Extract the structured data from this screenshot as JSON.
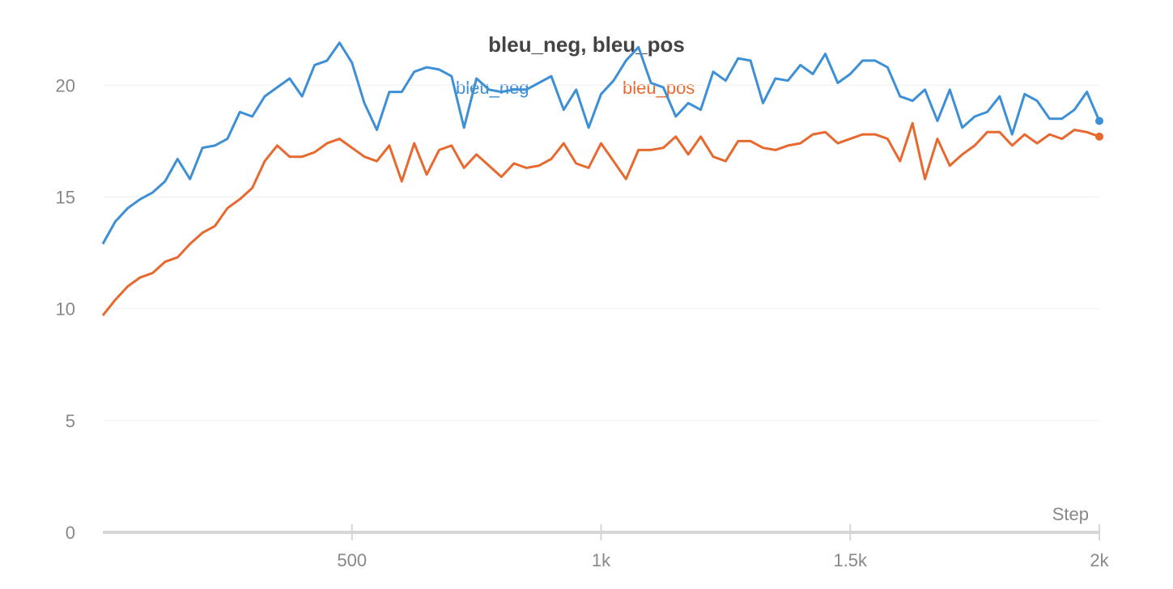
{
  "chart_data": {
    "type": "line",
    "title": "bleu_neg, bleu_pos",
    "xlabel": "Step",
    "ylabel": "",
    "xlim": [
      0,
      2000
    ],
    "ylim": [
      0,
      22
    ],
    "x_ticks": [
      {
        "value": 500,
        "label": "500"
      },
      {
        "value": 1000,
        "label": "1k"
      },
      {
        "value": 1500,
        "label": "1.5k"
      },
      {
        "value": 2000,
        "label": "2k"
      }
    ],
    "y_ticks": [
      {
        "value": 0,
        "label": "0"
      },
      {
        "value": 5,
        "label": "5"
      },
      {
        "value": 10,
        "label": "10"
      },
      {
        "value": 15,
        "label": "15"
      },
      {
        "value": 20,
        "label": "20"
      }
    ],
    "grid": "horizontal",
    "legend_position": "top-center",
    "series": [
      {
        "name": "bleu_neg",
        "color": "#3d8fd6",
        "points": [
          [
            0,
            12.9
          ],
          [
            25,
            13.9
          ],
          [
            50,
            14.5
          ],
          [
            75,
            14.9
          ],
          [
            100,
            15.2
          ],
          [
            125,
            15.7
          ],
          [
            150,
            16.7
          ],
          [
            175,
            15.8
          ],
          [
            200,
            17.2
          ],
          [
            225,
            17.3
          ],
          [
            250,
            17.6
          ],
          [
            275,
            18.8
          ],
          [
            300,
            18.6
          ],
          [
            325,
            19.5
          ],
          [
            350,
            19.9
          ],
          [
            375,
            20.3
          ],
          [
            400,
            19.5
          ],
          [
            425,
            20.9
          ],
          [
            450,
            21.1
          ],
          [
            475,
            21.9
          ],
          [
            500,
            21.0
          ],
          [
            525,
            19.2
          ],
          [
            550,
            18.0
          ],
          [
            575,
            19.7
          ],
          [
            600,
            19.7
          ],
          [
            625,
            20.6
          ],
          [
            650,
            20.8
          ],
          [
            675,
            20.7
          ],
          [
            700,
            20.4
          ],
          [
            725,
            18.1
          ],
          [
            750,
            20.3
          ],
          [
            775,
            19.8
          ],
          [
            800,
            19.7
          ],
          [
            825,
            19.8
          ],
          [
            850,
            19.8
          ],
          [
            875,
            20.1
          ],
          [
            900,
            20.4
          ],
          [
            925,
            18.9
          ],
          [
            950,
            19.8
          ],
          [
            975,
            18.1
          ],
          [
            1000,
            19.6
          ],
          [
            1025,
            20.2
          ],
          [
            1050,
            21.1
          ],
          [
            1075,
            21.7
          ],
          [
            1100,
            20.1
          ],
          [
            1125,
            19.9
          ],
          [
            1150,
            18.6
          ],
          [
            1175,
            19.2
          ],
          [
            1200,
            18.9
          ],
          [
            1225,
            20.6
          ],
          [
            1250,
            20.2
          ],
          [
            1275,
            21.2
          ],
          [
            1300,
            21.1
          ],
          [
            1325,
            19.2
          ],
          [
            1350,
            20.3
          ],
          [
            1375,
            20.2
          ],
          [
            1400,
            20.9
          ],
          [
            1425,
            20.5
          ],
          [
            1450,
            21.4
          ],
          [
            1475,
            20.1
          ],
          [
            1500,
            20.5
          ],
          [
            1525,
            21.1
          ],
          [
            1550,
            21.1
          ],
          [
            1575,
            20.8
          ],
          [
            1600,
            19.5
          ],
          [
            1625,
            19.3
          ],
          [
            1650,
            19.8
          ],
          [
            1675,
            18.4
          ],
          [
            1700,
            19.8
          ],
          [
            1725,
            18.1
          ],
          [
            1750,
            18.6
          ],
          [
            1775,
            18.8
          ],
          [
            1800,
            19.5
          ],
          [
            1825,
            17.8
          ],
          [
            1850,
            19.6
          ],
          [
            1875,
            19.3
          ],
          [
            1900,
            18.5
          ],
          [
            1925,
            18.5
          ],
          [
            1950,
            18.9
          ],
          [
            1975,
            19.7
          ],
          [
            2000,
            18.4
          ]
        ]
      },
      {
        "name": "bleu_pos",
        "color": "#e8692f",
        "points": [
          [
            0,
            9.7
          ],
          [
            25,
            10.4
          ],
          [
            50,
            11.0
          ],
          [
            75,
            11.4
          ],
          [
            100,
            11.6
          ],
          [
            125,
            12.1
          ],
          [
            150,
            12.3
          ],
          [
            175,
            12.9
          ],
          [
            200,
            13.4
          ],
          [
            225,
            13.7
          ],
          [
            250,
            14.5
          ],
          [
            275,
            14.9
          ],
          [
            300,
            15.4
          ],
          [
            325,
            16.6
          ],
          [
            350,
            17.3
          ],
          [
            375,
            16.8
          ],
          [
            400,
            16.8
          ],
          [
            425,
            17.0
          ],
          [
            450,
            17.4
          ],
          [
            475,
            17.6
          ],
          [
            500,
            17.2
          ],
          [
            525,
            16.8
          ],
          [
            550,
            16.6
          ],
          [
            575,
            17.3
          ],
          [
            600,
            15.7
          ],
          [
            625,
            17.4
          ],
          [
            650,
            16.0
          ],
          [
            675,
            17.1
          ],
          [
            700,
            17.3
          ],
          [
            725,
            16.3
          ],
          [
            750,
            16.9
          ],
          [
            775,
            16.4
          ],
          [
            800,
            15.9
          ],
          [
            825,
            16.5
          ],
          [
            850,
            16.3
          ],
          [
            875,
            16.4
          ],
          [
            900,
            16.7
          ],
          [
            925,
            17.4
          ],
          [
            950,
            16.5
          ],
          [
            975,
            16.3
          ],
          [
            1000,
            17.4
          ],
          [
            1025,
            16.6
          ],
          [
            1050,
            15.8
          ],
          [
            1075,
            17.1
          ],
          [
            1100,
            17.1
          ],
          [
            1125,
            17.2
          ],
          [
            1150,
            17.7
          ],
          [
            1175,
            16.9
          ],
          [
            1200,
            17.7
          ],
          [
            1225,
            16.8
          ],
          [
            1250,
            16.6
          ],
          [
            1275,
            17.5
          ],
          [
            1300,
            17.5
          ],
          [
            1325,
            17.2
          ],
          [
            1350,
            17.1
          ],
          [
            1375,
            17.3
          ],
          [
            1400,
            17.4
          ],
          [
            1425,
            17.8
          ],
          [
            1450,
            17.9
          ],
          [
            1475,
            17.4
          ],
          [
            1500,
            17.6
          ],
          [
            1525,
            17.8
          ],
          [
            1550,
            17.8
          ],
          [
            1575,
            17.6
          ],
          [
            1600,
            16.6
          ],
          [
            1625,
            18.3
          ],
          [
            1650,
            15.8
          ],
          [
            1675,
            17.6
          ],
          [
            1700,
            16.4
          ],
          [
            1725,
            16.9
          ],
          [
            1750,
            17.3
          ],
          [
            1775,
            17.9
          ],
          [
            1800,
            17.9
          ],
          [
            1825,
            17.3
          ],
          [
            1850,
            17.8
          ],
          [
            1875,
            17.4
          ],
          [
            1900,
            17.8
          ],
          [
            1925,
            17.6
          ],
          [
            1950,
            18.0
          ],
          [
            1975,
            17.9
          ],
          [
            2000,
            17.7
          ]
        ]
      }
    ]
  }
}
